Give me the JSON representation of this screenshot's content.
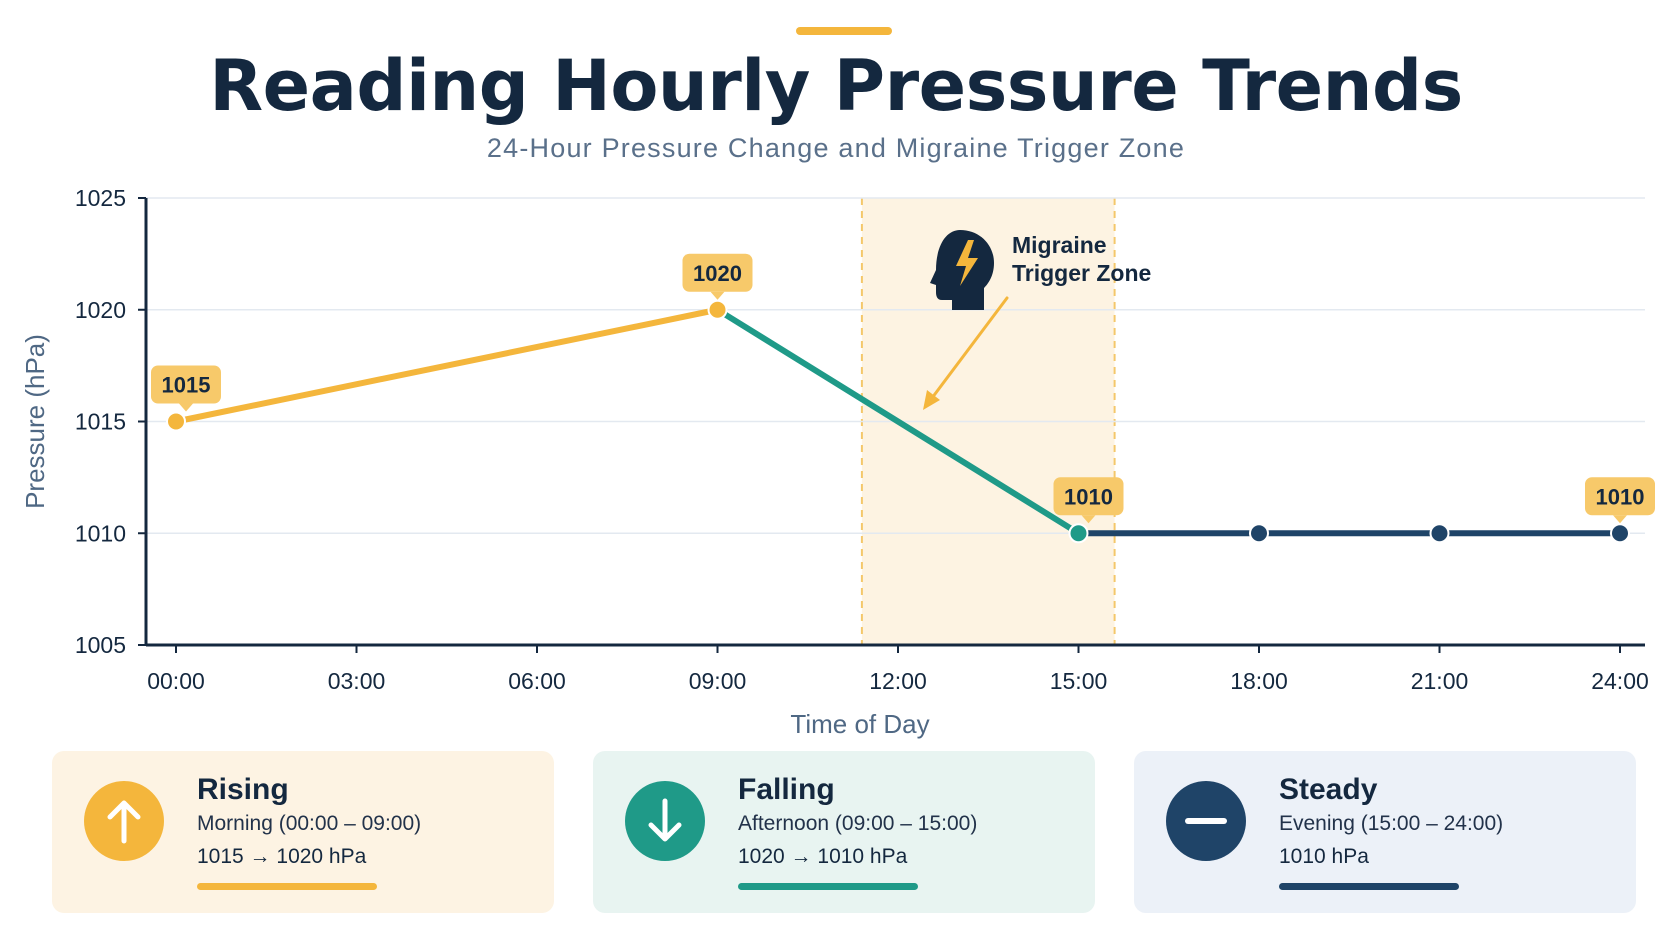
{
  "header": {
    "title": "Reading Hourly Pressure Trends",
    "subtitle": "24-Hour Pressure Change and Migraine Trigger Zone"
  },
  "colors": {
    "rising": "#f4b63c",
    "falling": "#1f9a88",
    "steady": "#1f4468",
    "zone_fill": "#fdf3e2",
    "zone_border": "#f4c76a",
    "label_fill": "#f7c96a",
    "title": "#14283f"
  },
  "chart_data": {
    "type": "line",
    "title": "Reading Hourly Pressure Trends",
    "subtitle": "24-Hour Pressure Change and Migraine Trigger Zone",
    "xlabel": "Time of Day",
    "ylabel": "Pressure (hPa)",
    "x_ticks": [
      "00:00",
      "03:00",
      "06:00",
      "09:00",
      "12:00",
      "15:00",
      "18:00",
      "21:00",
      "24:00"
    ],
    "y_ticks": [
      1005,
      1010,
      1015,
      1020,
      1025
    ],
    "xlim": [
      0,
      24
    ],
    "ylim": [
      1005,
      1025
    ],
    "grid": "horizontal",
    "series": [
      {
        "segment": "rising",
        "points": [
          {
            "x": 0,
            "y": 1015
          },
          {
            "x": 9,
            "y": 1020
          }
        ]
      },
      {
        "segment": "falling",
        "points": [
          {
            "x": 9,
            "y": 1020
          },
          {
            "x": 15,
            "y": 1010
          }
        ]
      },
      {
        "segment": "steady",
        "points": [
          {
            "x": 15,
            "y": 1010
          },
          {
            "x": 18,
            "y": 1010
          },
          {
            "x": 21,
            "y": 1010
          },
          {
            "x": 24,
            "y": 1010
          }
        ]
      }
    ],
    "data_labels": [
      {
        "x": 0,
        "y": 1015,
        "text": "1015"
      },
      {
        "x": 9,
        "y": 1020,
        "text": "1020"
      },
      {
        "x": 15,
        "y": 1010,
        "text": "1010"
      },
      {
        "x": 24,
        "y": 1010,
        "text": "1010"
      }
    ],
    "highlight_zone": {
      "x_start": 11.4,
      "x_end": 15.6,
      "label_line1": "Migraine",
      "label_line2": "Trigger Zone",
      "icon": "head-lightning-icon"
    }
  },
  "cards": [
    {
      "key": "rising",
      "icon": "arrow-up-icon",
      "title": "Rising",
      "subtitle": "Morning (00:00 – 09:00)",
      "value": "1015 → 1020 hPa"
    },
    {
      "key": "falling",
      "icon": "arrow-down-icon",
      "title": "Falling",
      "subtitle": "Afternoon (09:00 – 15:00)",
      "value": "1020 → 1010 hPa"
    },
    {
      "key": "steady",
      "icon": "minus-icon",
      "title": "Steady",
      "subtitle": "Evening (15:00 – 24:00)",
      "value": "1010 hPa"
    }
  ]
}
